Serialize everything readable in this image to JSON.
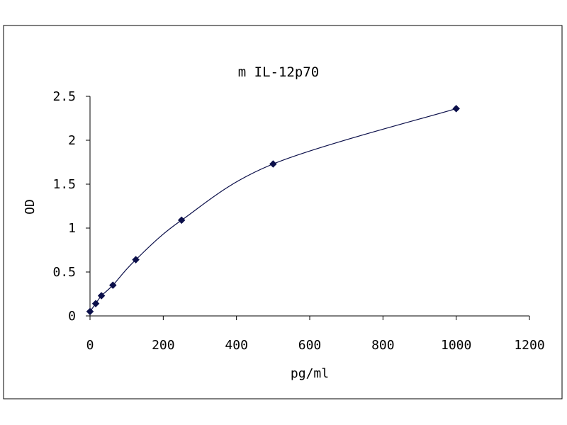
{
  "chart_data": {
    "type": "scatter",
    "title": "m IL-12p70",
    "xlabel": "pg/ml",
    "ylabel": "OD",
    "xlim": [
      0,
      1200
    ],
    "ylim": [
      0,
      2.5
    ],
    "x_ticks": [
      "0",
      "200",
      "400",
      "600",
      "800",
      "1000",
      "1200"
    ],
    "y_ticks": [
      "0",
      "0.5",
      "1",
      "1.5",
      "2",
      "2.5"
    ],
    "grid": false,
    "legend": "none",
    "smooth_line": true,
    "series": [
      {
        "x": [
          0,
          15.6,
          31.2,
          62.5,
          125,
          250,
          500,
          1000
        ],
        "y": [
          0.05,
          0.14,
          0.23,
          0.35,
          0.64,
          1.09,
          1.73,
          2.36
        ],
        "marker": "diamond",
        "color": "#0b0f4a"
      }
    ]
  }
}
